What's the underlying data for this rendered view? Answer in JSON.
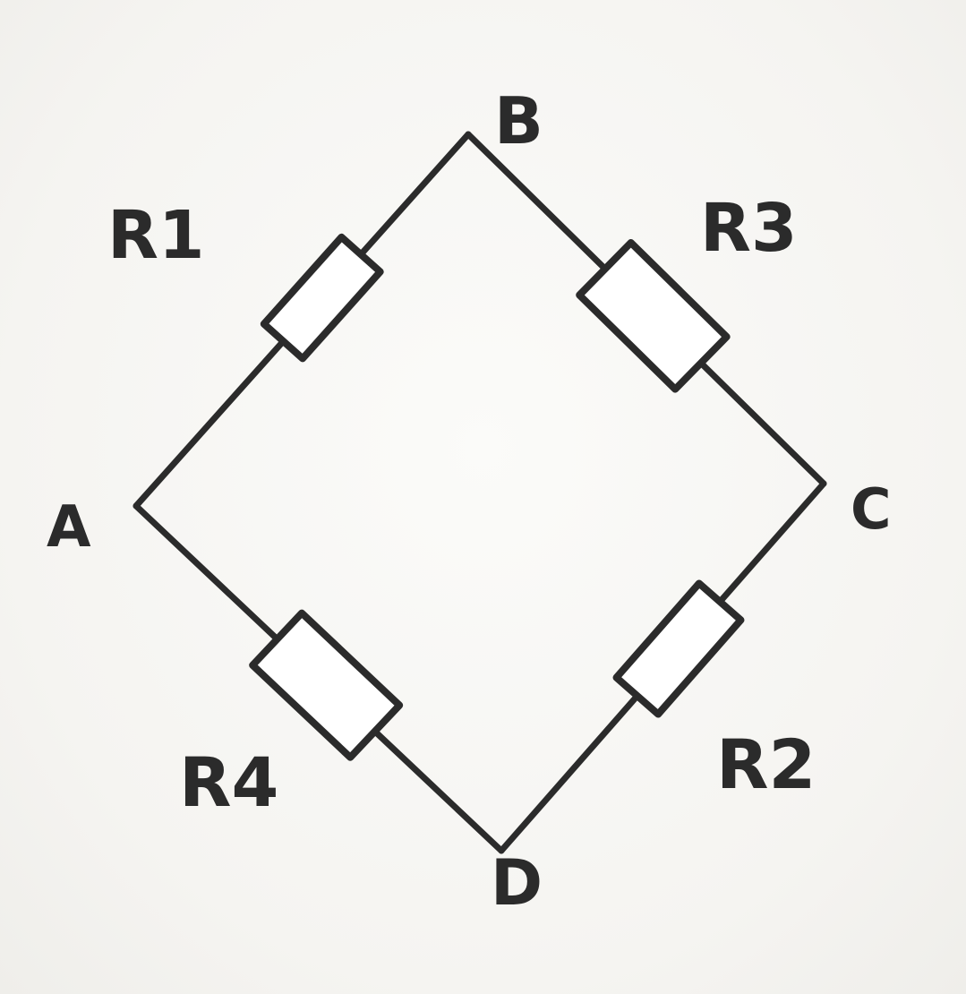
{
  "colors": {
    "ink": "#2b2b2b",
    "paper": "#f7f6f3",
    "resistor_fill": "#ffffff"
  },
  "nodes": [
    {
      "id": "A",
      "label": "A"
    },
    {
      "id": "B",
      "label": "B"
    },
    {
      "id": "C",
      "label": "C"
    },
    {
      "id": "D",
      "label": "D"
    }
  ],
  "resistors": [
    {
      "id": "R1",
      "label": "R1",
      "from": "A",
      "to": "B"
    },
    {
      "id": "R3",
      "label": "R3",
      "from": "B",
      "to": "C"
    },
    {
      "id": "R2",
      "label": "R2",
      "from": "C",
      "to": "D"
    },
    {
      "id": "R4",
      "label": "R4",
      "from": "A",
      "to": "D"
    }
  ]
}
